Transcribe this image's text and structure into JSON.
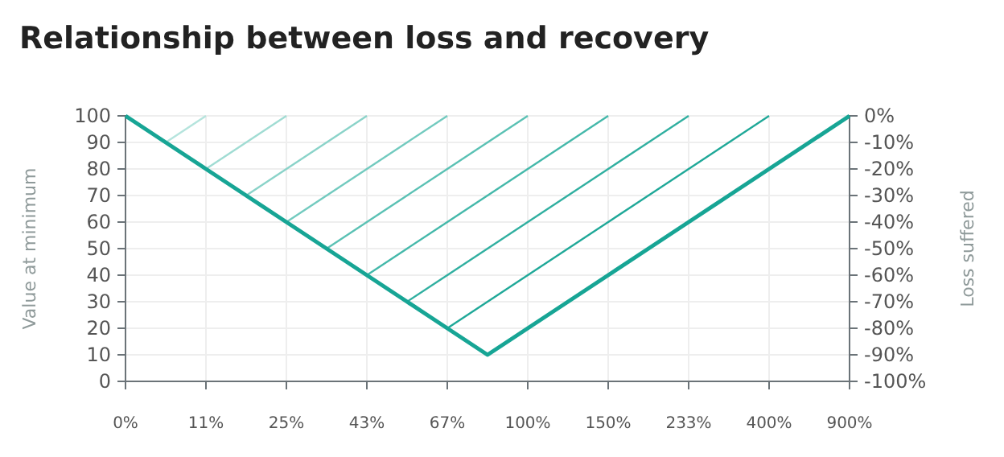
{
  "chart_data": {
    "type": "line",
    "title": "Relationship between loss and recovery",
    "ylabel": "Value at minimum",
    "y2label": "Loss suffered",
    "categories": [
      "0%",
      null,
      "11%",
      null,
      "25%",
      null,
      "43%",
      null,
      "67%",
      null,
      "100%",
      null,
      "150%",
      null,
      "233%",
      null,
      "400%",
      null,
      "900%"
    ],
    "ylim": [
      0,
      100
    ],
    "yticks": [
      0,
      10,
      20,
      30,
      40,
      50,
      60,
      70,
      80,
      90,
      100
    ],
    "y2lim": [
      -100,
      0
    ],
    "y2ticks": [
      {
        "value": -100,
        "label": "-100%"
      },
      {
        "value": -90,
        "label": "-90%"
      },
      {
        "value": -80,
        "label": "-80%"
      },
      {
        "value": -70,
        "label": "-70%"
      },
      {
        "value": -60,
        "label": "-60%"
      },
      {
        "value": -50,
        "label": "-50%"
      },
      {
        "value": -40,
        "label": "-40%"
      },
      {
        "value": -30,
        "label": "-30%"
      },
      {
        "value": -20,
        "label": "-20%"
      },
      {
        "value": -10,
        "label": "-10%"
      },
      {
        "value": 0,
        "label": "0%"
      }
    ],
    "grid": true,
    "marker": "none",
    "line_style": "solid",
    "series": [
      {
        "color": "#17a595",
        "values": [
          100,
          90,
          80,
          70,
          60,
          50,
          40,
          30,
          20,
          10,
          20,
          30,
          40,
          50,
          60,
          70,
          80,
          90,
          100
        ]
      },
      {
        "color": "#b5e4dd",
        "values": [
          null,
          90,
          100,
          null,
          null,
          null,
          null,
          null,
          null,
          null,
          null,
          null,
          null,
          null,
          null,
          null,
          null,
          null,
          null
        ]
      },
      {
        "color": "#a0dcd3",
        "values": [
          null,
          null,
          80,
          90,
          100,
          null,
          null,
          null,
          null,
          null,
          null,
          null,
          null,
          null,
          null,
          null,
          null,
          null,
          null
        ]
      },
      {
        "color": "#8ad3c9",
        "values": [
          null,
          null,
          null,
          70,
          80,
          90,
          100,
          null,
          null,
          null,
          null,
          null,
          null,
          null,
          null,
          null,
          null,
          null,
          null
        ]
      },
      {
        "color": "#72cabf",
        "values": [
          null,
          null,
          null,
          null,
          60,
          70,
          80,
          90,
          100,
          null,
          null,
          null,
          null,
          null,
          null,
          null,
          null,
          null,
          null
        ]
      },
      {
        "color": "#5ac1b4",
        "values": [
          null,
          null,
          null,
          null,
          null,
          50,
          60,
          70,
          80,
          90,
          100,
          null,
          null,
          null,
          null,
          null,
          null,
          null,
          null
        ]
      },
      {
        "color": "#44b8aa",
        "values": [
          null,
          null,
          null,
          null,
          null,
          null,
          40,
          50,
          60,
          70,
          80,
          90,
          100,
          null,
          null,
          null,
          null,
          null,
          null
        ]
      },
      {
        "color": "#30afa0",
        "values": [
          null,
          null,
          null,
          null,
          null,
          null,
          null,
          30,
          40,
          50,
          60,
          70,
          80,
          90,
          100,
          null,
          null,
          null,
          null
        ]
      },
      {
        "color": "#1fa898",
        "values": [
          null,
          null,
          null,
          null,
          null,
          null,
          null,
          null,
          20,
          30,
          40,
          50,
          60,
          70,
          80,
          90,
          100,
          null,
          null
        ]
      }
    ]
  }
}
